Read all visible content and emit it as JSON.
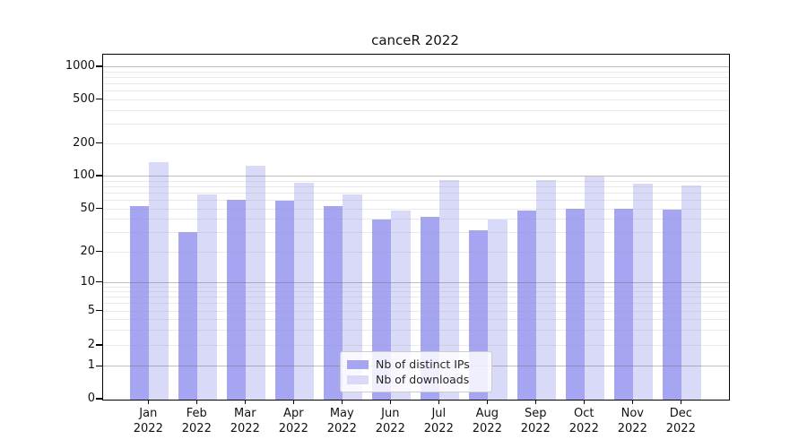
{
  "title": "canceR 2022",
  "chart_data": {
    "type": "bar",
    "title": "canceR 2022",
    "categories": [
      "Jan",
      "Feb",
      "Mar",
      "Apr",
      "May",
      "Jun",
      "Jul",
      "Aug",
      "Sep",
      "Oct",
      "Nov",
      "Dec"
    ],
    "xtick_year": "2022",
    "series": [
      {
        "name": "Nb of distinct IPs",
        "color": "#a5a5f1",
        "values": [
          54,
          31,
          61,
          60,
          54,
          40,
          43,
          32,
          49,
          51,
          51,
          50
        ]
      },
      {
        "name": "Nb of downloads",
        "color": "#d9d9f8",
        "values": [
          137,
          68,
          125,
          88,
          69,
          49,
          92,
          40,
          93,
          100,
          86,
          83
        ]
      }
    ],
    "yticks": [
      0,
      1,
      2,
      5,
      10,
      20,
      50,
      100,
      200,
      500,
      1000
    ],
    "y_scale": "log",
    "ylim": [
      0,
      1300
    ],
    "xlabel": "",
    "ylabel": "",
    "grid": true,
    "grid_major_at": [
      1,
      10,
      100,
      1000
    ],
    "legend_position": "lower center",
    "bar_colors": {
      "distinct_ips": "#a5a5f1",
      "downloads": "#d9d9f8"
    }
  }
}
